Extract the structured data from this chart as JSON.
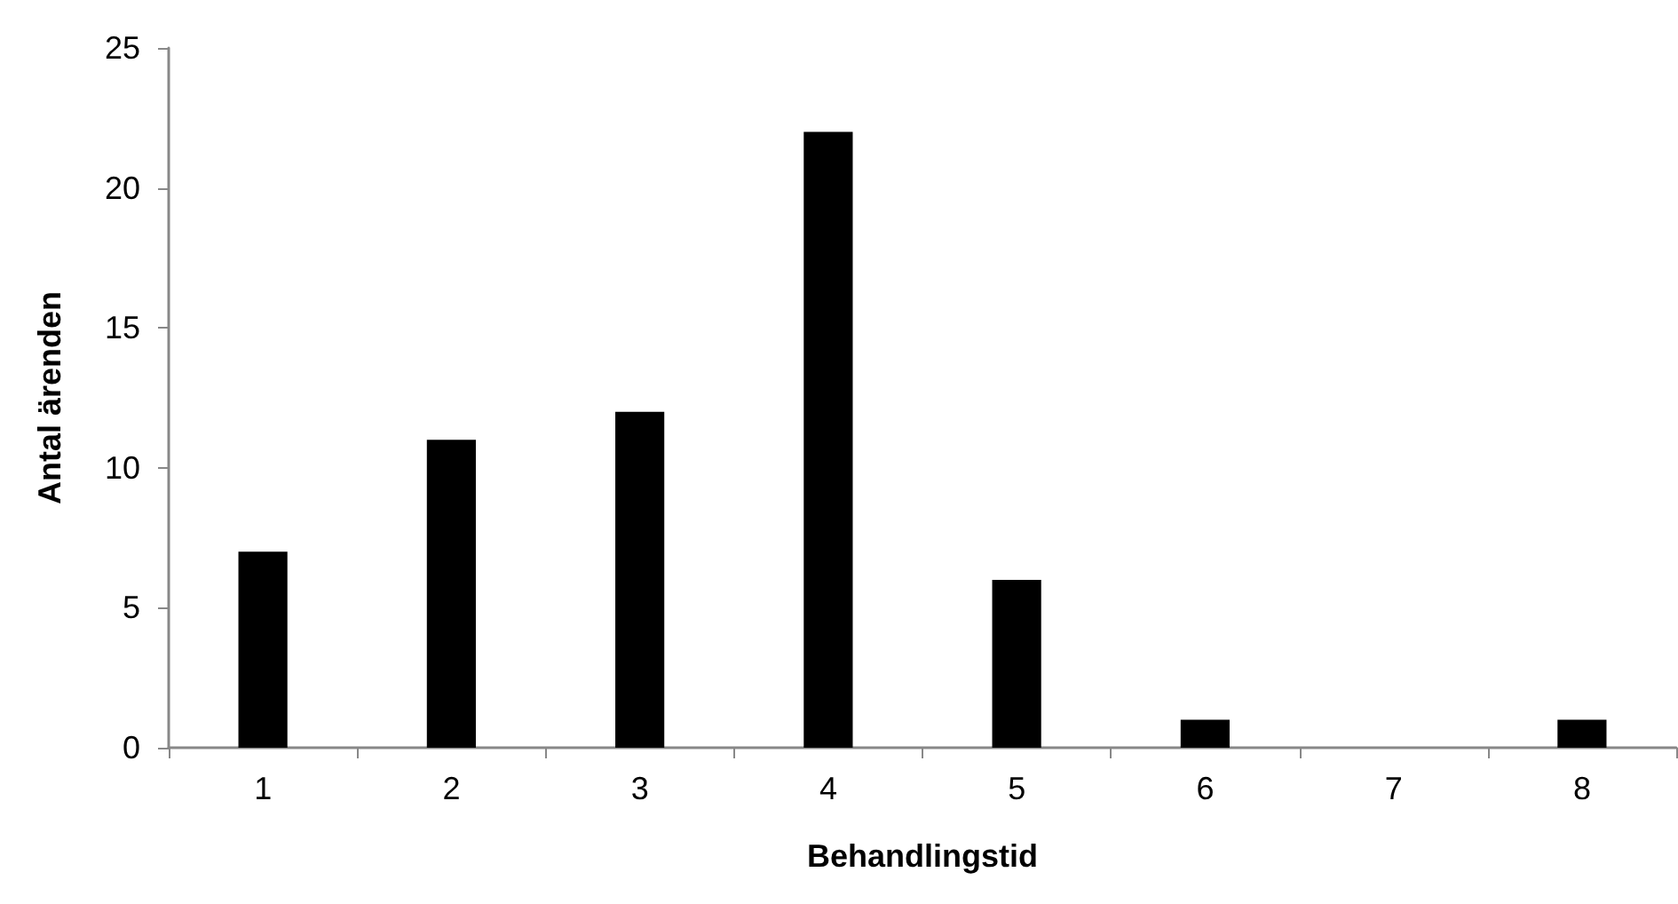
{
  "chart_data": {
    "type": "bar",
    "xlabel": "Behandlingstid",
    "ylabel": "Antal ärenden",
    "categories": [
      "1",
      "2",
      "3",
      "4",
      "5",
      "6",
      "7",
      "8"
    ],
    "values": [
      7,
      11,
      12,
      22,
      6,
      1,
      0,
      1
    ],
    "color": "#000000",
    "ylim": [
      0,
      25
    ],
    "yticks": [
      0,
      5,
      10,
      15,
      20,
      25
    ],
    "grid": false
  }
}
